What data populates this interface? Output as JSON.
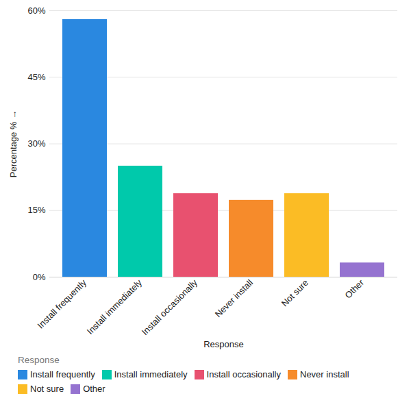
{
  "chart_data": {
    "type": "bar",
    "x_label": "Response",
    "y_label": "Percentage %",
    "categories": [
      "Install frequently",
      "Install immediately",
      "Install occasionally",
      "Never install",
      "Not sure",
      "Other"
    ],
    "values": [
      58,
      25,
      18.8,
      17.3,
      18.8,
      3.2
    ],
    "colors": [
      "#2a88e0",
      "#00c9ab",
      "#e8516f",
      "#f68b2b",
      "#fbbc25",
      "#9573d0"
    ],
    "ylim": [
      0,
      60
    ],
    "yticks": [
      {
        "value": 0,
        "label": "0%"
      },
      {
        "value": 15,
        "label": "15%"
      },
      {
        "value": 30,
        "label": "30%"
      },
      {
        "value": 45,
        "label": "45%"
      },
      {
        "value": 60,
        "label": "60%"
      }
    ],
    "grid": true,
    "legend": "bottom",
    "legend_title": "Response"
  }
}
